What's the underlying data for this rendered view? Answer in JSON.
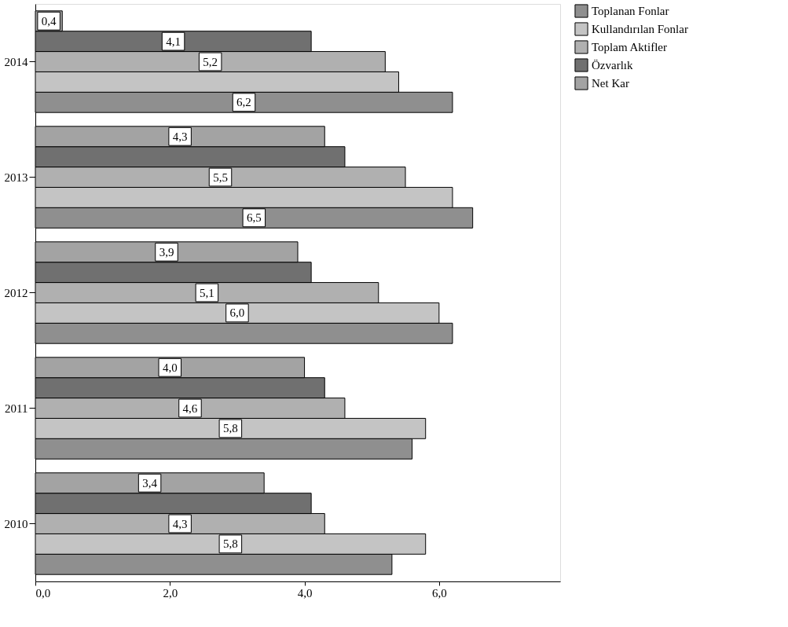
{
  "chart_data": {
    "type": "bar",
    "orientation": "horizontal",
    "categories": [
      "2014",
      "2013",
      "2012",
      "2011",
      "2010"
    ],
    "series": [
      {
        "name": "Toplanan Fonlar",
        "color": "#8f8f8f",
        "values": [
          6.2,
          6.5,
          6.2,
          5.6,
          5.3
        ],
        "value_labels": [
          "6,2",
          "6,5",
          null,
          null,
          null
        ]
      },
      {
        "name": "Kullandırılan Fonlar",
        "color": "#c4c4c4",
        "values": [
          5.4,
          6.2,
          6.0,
          5.8,
          5.8
        ],
        "value_labels": [
          null,
          null,
          "6,0",
          "5,8",
          "5,8"
        ]
      },
      {
        "name": "Toplam Aktifler",
        "color": "#b0b0b0",
        "values": [
          5.2,
          5.5,
          5.1,
          4.6,
          4.3
        ],
        "value_labels": [
          "5,2",
          "5,5",
          "5,1",
          "4,6",
          "4,3"
        ]
      },
      {
        "name": "Özvarlık",
        "color": "#707070",
        "values": [
          4.1,
          4.6,
          4.1,
          4.3,
          4.1
        ],
        "value_labels": [
          "4,1",
          null,
          null,
          null,
          null
        ]
      },
      {
        "name": "Net Kar",
        "color": "#a3a3a3",
        "values": [
          0.4,
          4.3,
          3.9,
          4.0,
          3.4
        ],
        "value_labels": [
          "0,4",
          "4,3",
          "3,9",
          "4,0",
          "3,4"
        ]
      }
    ],
    "xlim": [
      0,
      7.8
    ],
    "xticks": [
      {
        "value": 0,
        "label": "0,0"
      },
      {
        "value": 2,
        "label": "2,0"
      },
      {
        "value": 4,
        "label": "4,0"
      },
      {
        "value": 6,
        "label": "6,0"
      }
    ],
    "grid": false,
    "legend": "right"
  }
}
